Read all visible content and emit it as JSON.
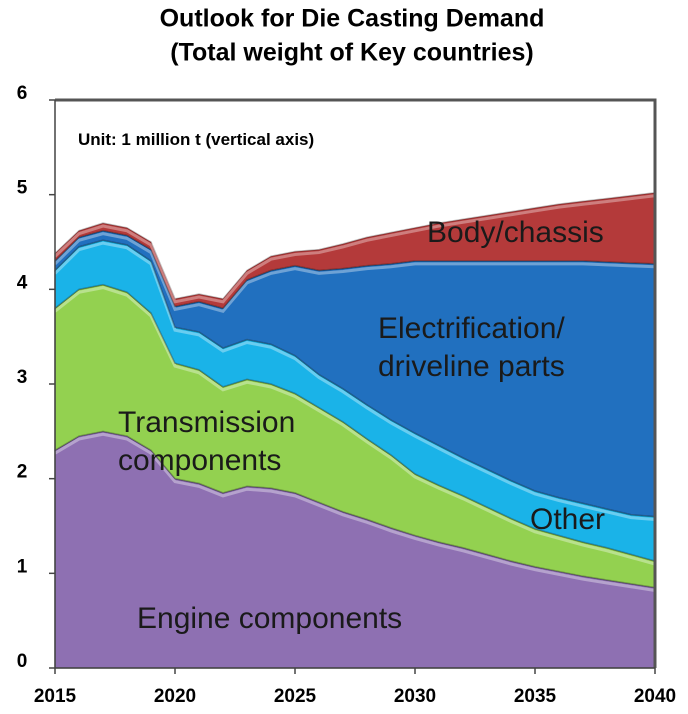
{
  "chart_data": {
    "type": "stacked_area",
    "title": [
      "Outlook for Die Casting Demand",
      "(Total weight of Key countries)"
    ],
    "annotation": "Unit: 1 million t (vertical axis)",
    "x": [
      2015,
      2016,
      2017,
      2018,
      2019,
      2020,
      2021,
      2022,
      2023,
      2024,
      2025,
      2026,
      2027,
      2028,
      2029,
      2030,
      2031,
      2032,
      2033,
      2034,
      2035,
      2036,
      2037,
      2038,
      2039,
      2040
    ],
    "series": [
      {
        "name": "Engine components",
        "color": "#8e70b2",
        "values": [
          2.3,
          2.45,
          2.5,
          2.45,
          2.3,
          2.0,
          1.95,
          1.85,
          1.92,
          1.9,
          1.85,
          1.75,
          1.65,
          1.57,
          1.48,
          1.4,
          1.33,
          1.27,
          1.2,
          1.13,
          1.07,
          1.02,
          0.97,
          0.93,
          0.89,
          0.85
        ]
      },
      {
        "name": "Transmission components",
        "color": "#93d150",
        "values": [
          1.5,
          1.55,
          1.55,
          1.52,
          1.45,
          1.22,
          1.2,
          1.12,
          1.13,
          1.1,
          1.05,
          1.0,
          0.95,
          0.85,
          0.77,
          0.65,
          0.6,
          0.55,
          0.5,
          0.45,
          0.4,
          0.38,
          0.36,
          0.34,
          0.31,
          0.28
        ]
      },
      {
        "name": "Other",
        "color": "#1ab3e8",
        "values": [
          0.4,
          0.45,
          0.47,
          0.5,
          0.55,
          0.38,
          0.4,
          0.41,
          0.42,
          0.42,
          0.4,
          0.35,
          0.35,
          0.36,
          0.37,
          0.43,
          0.42,
          0.4,
          0.4,
          0.4,
          0.4,
          0.4,
          0.41,
          0.41,
          0.42,
          0.47
        ]
      },
      {
        "name": "Electrification/ driveline parts",
        "color": "#2170bf",
        "values": [
          0.1,
          0.1,
          0.1,
          0.1,
          0.12,
          0.22,
          0.32,
          0.42,
          0.63,
          0.78,
          0.95,
          1.1,
          1.27,
          1.47,
          1.65,
          1.82,
          1.95,
          2.08,
          2.2,
          2.32,
          2.43,
          2.5,
          2.56,
          2.61,
          2.66,
          2.67
        ]
      },
      {
        "name": "Body/chassis",
        "color": "#b43a3a",
        "values": [
          0.08,
          0.07,
          0.08,
          0.08,
          0.08,
          0.08,
          0.08,
          0.1,
          0.1,
          0.15,
          0.15,
          0.22,
          0.26,
          0.3,
          0.33,
          0.35,
          0.4,
          0.44,
          0.48,
          0.52,
          0.56,
          0.6,
          0.63,
          0.67,
          0.71,
          0.75
        ]
      }
    ],
    "xlim": [
      2015,
      2040
    ],
    "xticks": [
      2015,
      2020,
      2025,
      2030,
      2035,
      2040
    ],
    "ylim": [
      0,
      6
    ],
    "yticks": [
      0,
      1,
      2,
      3,
      4,
      5,
      6
    ],
    "grid": false
  }
}
